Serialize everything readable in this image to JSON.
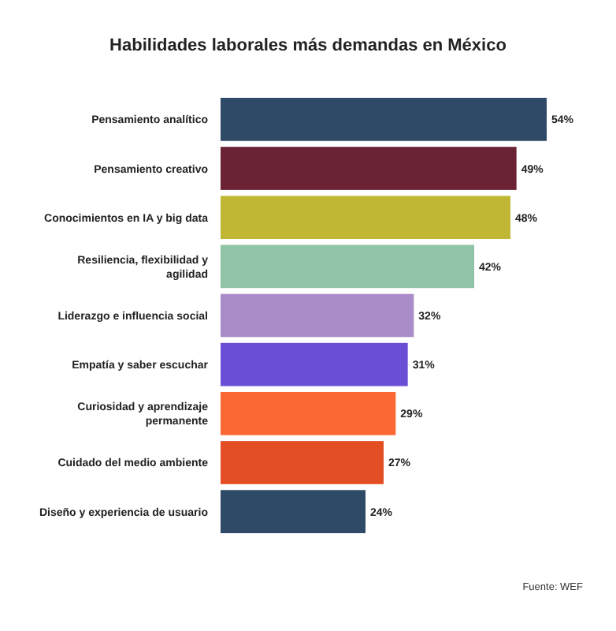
{
  "chart_data": {
    "type": "bar",
    "orientation": "horizontal",
    "title": "Habilidades laborales más demandas en México",
    "categories": [
      "Pensamiento analítico",
      "Pensamiento creativo",
      "Conocimientos en IA y big data",
      "Resiliencia, flexibilidad y agilidad",
      "Liderazgo e influencia social",
      "Empatía y saber escuchar",
      "Curiosidad y aprendizaje permanente",
      "Cuidado del medio ambiente",
      "Diseño y experiencia de usuario"
    ],
    "values": [
      54,
      49,
      48,
      42,
      32,
      31,
      29,
      27,
      24
    ],
    "value_labels": [
      "54%",
      "49%",
      "48%",
      "42%",
      "32%",
      "31%",
      "29%",
      "27%",
      "24%"
    ],
    "colors": [
      "#2f4a66",
      "#6b2235",
      "#c0b834",
      "#8fc4a6",
      "#a98bc8",
      "#6a4fd6",
      "#fb6834",
      "#e44e24",
      "#2f4a66"
    ],
    "annotations": [
      "Fuente: WEF"
    ]
  }
}
